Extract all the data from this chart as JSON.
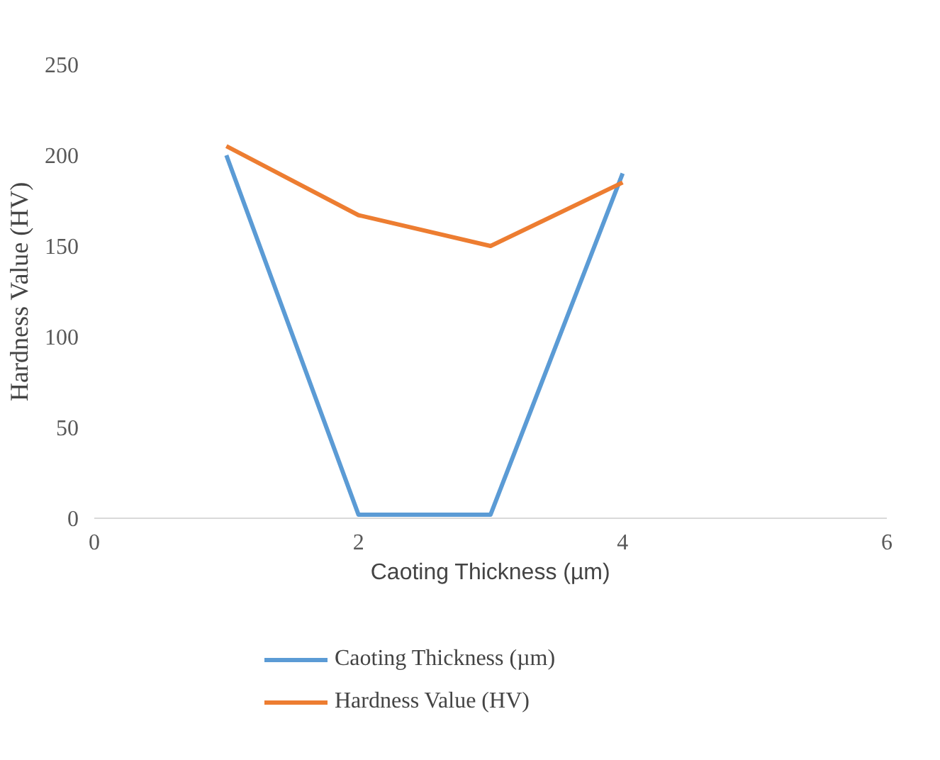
{
  "chart_data": {
    "type": "line",
    "xlabel": "Caoting Thickness (µm)",
    "ylabel": "Hardness Value (HV)",
    "x": [
      1,
      2,
      3,
      4
    ],
    "series": [
      {
        "name": "Caoting Thickness (µm)",
        "color": "#5b9bd5",
        "values": [
          200,
          2,
          2,
          190
        ]
      },
      {
        "name": "Hardness Value (HV)",
        "color": "#ed7d31",
        "values": [
          205,
          167,
          150,
          185
        ]
      }
    ],
    "xlim": [
      0,
      6
    ],
    "ylim": [
      0,
      250
    ],
    "xticks": [
      0,
      2,
      4,
      6
    ],
    "yticks": [
      0,
      50,
      100,
      150,
      200,
      250
    ],
    "grid": false,
    "legend": "bottom",
    "marker": "none",
    "line_style": "solid"
  }
}
